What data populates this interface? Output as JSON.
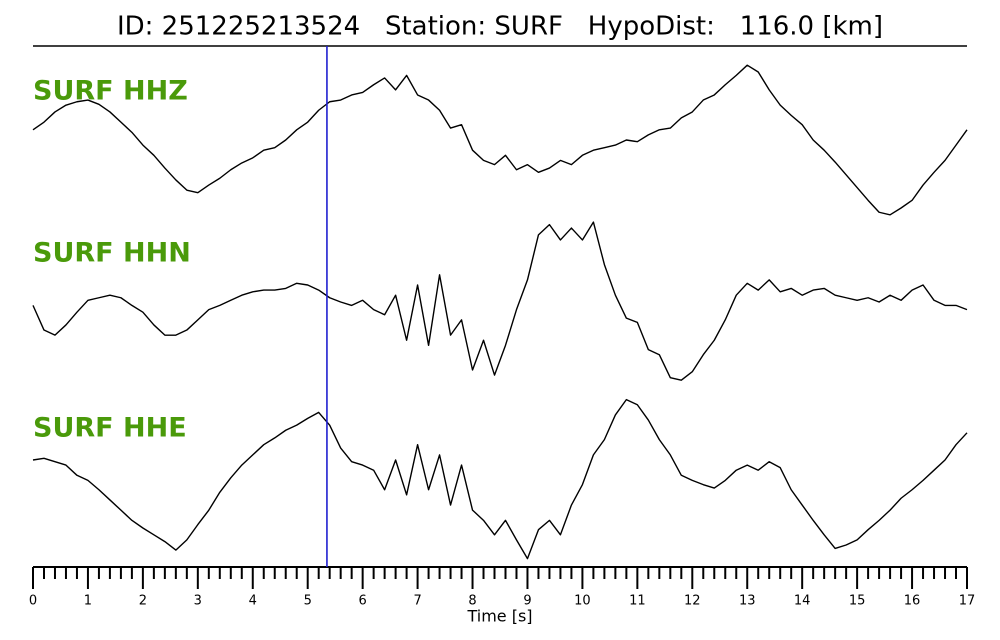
{
  "chart_data": {
    "type": "line",
    "title": "ID: 251225213524   Station: SURF   HypoDist:   116.0 [km]",
    "xlabel": "Time [s]",
    "xlim": [
      0,
      17
    ],
    "xticks": [
      0,
      1,
      2,
      3,
      4,
      5,
      6,
      7,
      8,
      9,
      10,
      11,
      12,
      13,
      14,
      15,
      16,
      17
    ],
    "ylim": [
      -100,
      100
    ],
    "pick": {
      "x": 5.35,
      "color": "#1f1fd0"
    },
    "label_color": "#4a9a0a",
    "x": [
      0,
      0.2,
      0.4,
      0.6,
      0.8,
      1,
      1.2,
      1.4,
      1.6,
      1.8,
      2,
      2.2,
      2.4,
      2.6,
      2.8,
      3,
      3.2,
      3.4,
      3.6,
      3.8,
      4,
      4.2,
      4.4,
      4.6,
      4.8,
      5,
      5.2,
      5.4,
      5.6,
      5.8,
      6,
      6.2,
      6.4,
      6.6,
      6.8,
      7,
      7.2,
      7.4,
      7.6,
      7.8,
      8,
      8.2,
      8.4,
      8.6,
      8.8,
      9,
      9.2,
      9.4,
      9.6,
      9.8,
      10,
      10.2,
      10.4,
      10.6,
      10.8,
      11,
      11.2,
      11.4,
      11.6,
      11.8,
      12,
      12.2,
      12.4,
      12.6,
      12.8,
      13,
      13.2,
      13.4,
      13.6,
      13.8,
      14,
      14.2,
      14.4,
      14.6,
      14.8,
      15,
      15.2,
      15.4,
      15.6,
      15.8,
      16,
      16.2,
      16.4,
      16.6,
      16.8,
      17
    ],
    "series": [
      {
        "name": "SURF HHZ",
        "color": "#000000",
        "values": [
          12,
          21,
          33,
          41,
          45,
          47,
          42,
          33,
          21,
          9,
          -6,
          -18,
          -33,
          -47,
          -59,
          -62,
          -53,
          -45,
          -35,
          -27,
          -21,
          -12,
          -9,
          0,
          12,
          21,
          35,
          45,
          47,
          53,
          56,
          65,
          73,
          59,
          76,
          53,
          47,
          35,
          14,
          18,
          -12,
          -24,
          -29,
          -18,
          -35,
          -29,
          -38,
          -33,
          -24,
          -29,
          -18,
          -12,
          -9,
          -6,
          0,
          -2,
          6,
          12,
          14,
          26,
          33,
          47,
          53,
          65,
          76,
          88,
          80,
          59,
          41,
          29,
          18,
          0,
          -12,
          -26,
          -41,
          -56,
          -71,
          -85,
          -88,
          -80,
          -71,
          -53,
          -38,
          -24,
          -6,
          12
        ]
      },
      {
        "name": "SURF HHN",
        "color": "#000000",
        "values": [
          -4,
          -33,
          -39,
          -27,
          -12,
          2,
          5,
          8,
          5,
          -4,
          -12,
          -27,
          -39,
          -39,
          -33,
          -21,
          -9,
          -4,
          2,
          8,
          12,
          14,
          14,
          16,
          22,
          20,
          14,
          5,
          0,
          -4,
          2,
          -9,
          -15,
          8,
          -45,
          20,
          -51,
          32,
          -39,
          -21,
          -80,
          -45,
          -86,
          -51,
          -9,
          26,
          79,
          91,
          73,
          87,
          73,
          94,
          44,
          8,
          -19,
          -24,
          -56,
          -62,
          -89,
          -92,
          -82,
          -62,
          -45,
          -21,
          8,
          22,
          14,
          26,
          12,
          16,
          8,
          14,
          16,
          8,
          5,
          2,
          5,
          0,
          8,
          2,
          14,
          20,
          2,
          -4,
          -4,
          -9
        ]
      },
      {
        "name": "SURF HHE",
        "color": "#000000",
        "values": [
          20,
          22,
          18,
          14,
          2,
          -4,
          -15,
          -27,
          -39,
          -51,
          -60,
          -68,
          -76,
          -86,
          -74,
          -56,
          -39,
          -18,
          -1,
          14,
          26,
          38,
          46,
          55,
          61,
          69,
          76,
          61,
          34,
          18,
          14,
          8,
          -15,
          20,
          -21,
          38,
          -15,
          26,
          -33,
          14,
          -39,
          -51,
          -68,
          -51,
          -74,
          -96,
          -62,
          -51,
          -68,
          -33,
          -9,
          26,
          44,
          73,
          91,
          85,
          67,
          44,
          26,
          2,
          -4,
          -9,
          -13,
          -4,
          8,
          14,
          8,
          18,
          11,
          -15,
          -33,
          -51,
          -68,
          -84,
          -80,
          -74,
          -62,
          -51,
          -39,
          -25,
          -15,
          -4,
          8,
          20,
          38,
          52
        ]
      }
    ]
  }
}
